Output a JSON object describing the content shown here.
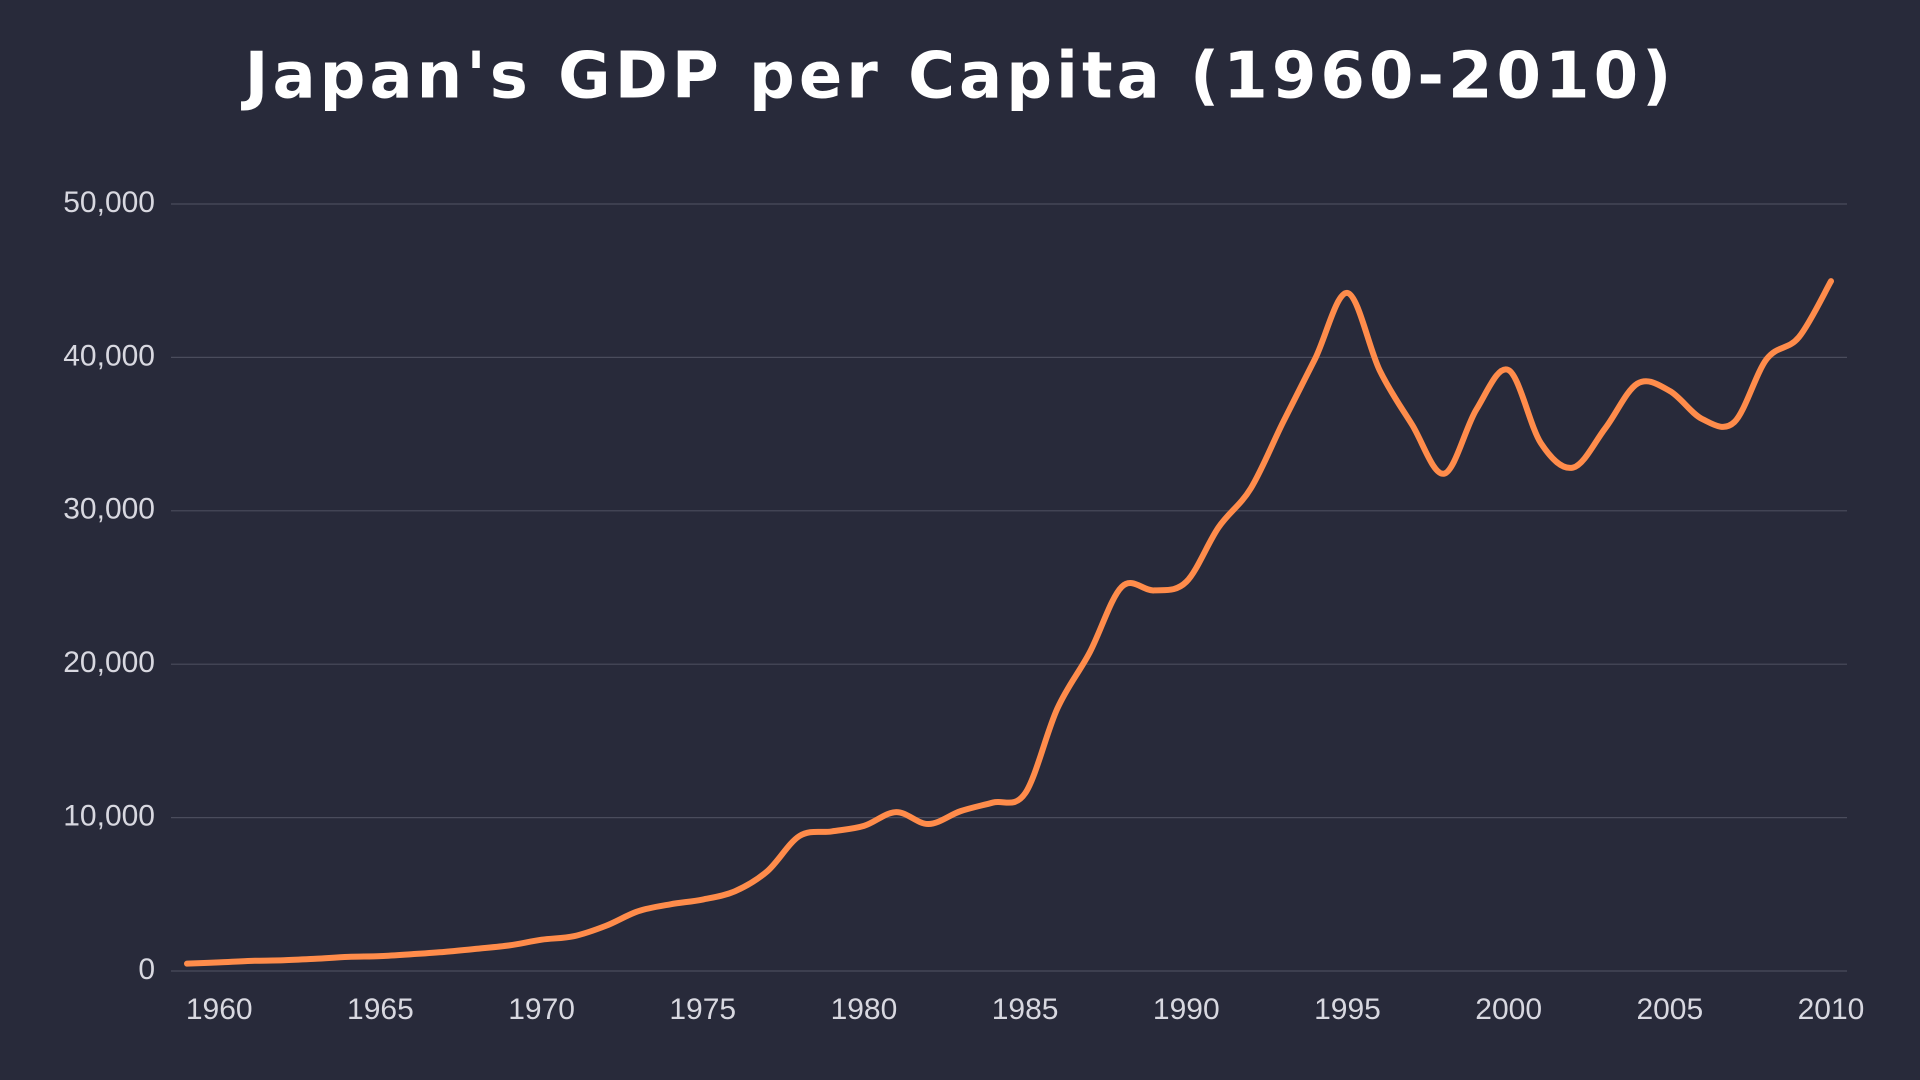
{
  "chart_data": {
    "type": "line",
    "title": "Japan's GDP per Capita (1960-2010)",
    "x": [
      1959,
      1960,
      1961,
      1962,
      1963,
      1964,
      1965,
      1966,
      1967,
      1968,
      1969,
      1970,
      1971,
      1972,
      1973,
      1974,
      1975,
      1976,
      1977,
      1978,
      1979,
      1980,
      1981,
      1982,
      1983,
      1984,
      1985,
      1986,
      1987,
      1988,
      1989,
      1990,
      1991,
      1992,
      1993,
      1994,
      1995,
      1996,
      1997,
      1998,
      1999,
      2000,
      2001,
      2002,
      2003,
      2004,
      2005,
      2006,
      2007,
      2008,
      2009,
      2010
    ],
    "series": [
      {
        "name": "GDP per Capita",
        "color": "#ff8c4b",
        "values": [
          480,
          563,
          660,
          700,
          800,
          920,
          970,
          1100,
          1250,
          1450,
          1670,
          2040,
          2270,
          2950,
          3900,
          4350,
          4660,
          5200,
          6500,
          8800,
          9100,
          9460,
          10360,
          9580,
          10420,
          10980,
          11580,
          17110,
          20750,
          25050,
          24810,
          25370,
          28920,
          31460,
          35770,
          39930,
          44200,
          39150,
          35630,
          32420,
          36610,
          39170,
          34410,
          32820,
          35390,
          38300,
          37810,
          35990,
          35780,
          39880,
          41310,
          44970
        ]
      }
    ],
    "xlim": [
      1959,
      2010
    ],
    "xticks": [
      1960,
      1965,
      1970,
      1975,
      1980,
      1985,
      1990,
      1995,
      2000,
      2005,
      2010
    ],
    "ylim": [
      0,
      50000
    ],
    "yticks": [
      0,
      {
        "value": 10000,
        "label": "10,000"
      },
      {
        "value": 20000,
        "label": "20,000"
      },
      {
        "value": 30000,
        "label": "30,000"
      },
      {
        "value": 40000,
        "label": "40,000"
      },
      {
        "value": 50000,
        "label": "50,000"
      }
    ],
    "grid": true
  }
}
